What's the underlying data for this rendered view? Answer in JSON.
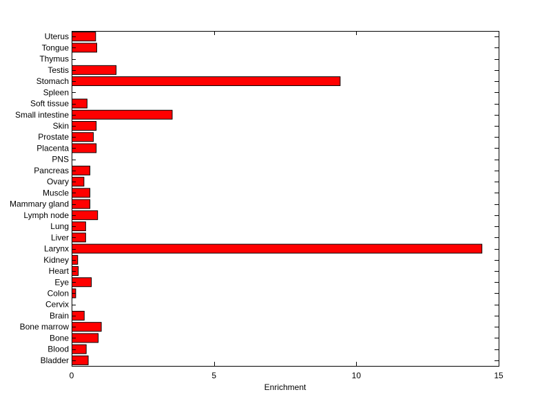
{
  "chart_data": {
    "type": "bar",
    "orientation": "horizontal",
    "categories": [
      "Bladder",
      "Blood",
      "Bone",
      "Bone marrow",
      "Brain",
      "Cervix",
      "Colon",
      "Eye",
      "Heart",
      "Kidney",
      "Larynx",
      "Liver",
      "Lung",
      "Lymph node",
      "Mammary gland",
      "Muscle",
      "Ovary",
      "Pancreas",
      "PNS",
      "Placenta",
      "Prostate",
      "Skin",
      "Small intestine",
      "Soft tissue",
      "Spleen",
      "Stomach",
      "Testis",
      "Thymus",
      "Tongue",
      "Uterus"
    ],
    "values": [
      0.57,
      0.5,
      0.92,
      1.03,
      0.43,
      0,
      0.13,
      0.68,
      0.22,
      0.2,
      14.4,
      0.48,
      0.48,
      0.9,
      0.63,
      0.63,
      0.42,
      0.63,
      0,
      0.85,
      0.75,
      0.85,
      3.52,
      0.53,
      0,
      9.42,
      1.55,
      0,
      0.87,
      0.83
    ],
    "xlabel": "Enrichment",
    "ylabel": "",
    "xlim": [
      0,
      15
    ],
    "xticks": [
      0,
      5,
      10,
      15
    ],
    "grid": false,
    "bar_color": "#ff0000",
    "edge_color": "#000000"
  }
}
